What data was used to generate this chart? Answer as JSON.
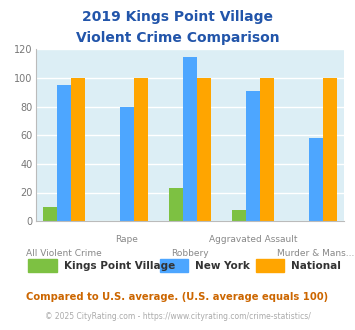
{
  "title_line1": "2019 Kings Point Village",
  "title_line2": "Violent Crime Comparison",
  "categories": [
    "All Violent Crime",
    "Rape",
    "Robbery",
    "Aggravated Assault",
    "Murder & Mans..."
  ],
  "xtick_top": [
    "",
    "Rape",
    "",
    "Aggravated Assault",
    ""
  ],
  "xtick_bot": [
    "All Violent Crime",
    "",
    "Robbery",
    "",
    "Murder & Mans..."
  ],
  "series": {
    "Kings Point Village": [
      10,
      0,
      23,
      8,
      0
    ],
    "New York": [
      95,
      80,
      115,
      91,
      58
    ],
    "National": [
      100,
      100,
      100,
      100,
      100
    ]
  },
  "colors": {
    "Kings Point Village": "#7dc142",
    "New York": "#4da6ff",
    "National": "#ffa500"
  },
  "ylim": [
    0,
    120
  ],
  "yticks": [
    0,
    20,
    40,
    60,
    80,
    100,
    120
  ],
  "title_color": "#2255aa",
  "background_color": "#dceef5",
  "footnote1": "Compared to U.S. average. (U.S. average equals 100)",
  "footnote2": "© 2025 CityRating.com - https://www.cityrating.com/crime-statistics/",
  "footnote1_color": "#cc6600",
  "footnote2_color": "#aaaaaa",
  "url_color": "#4da6ff",
  "bar_width": 0.22
}
